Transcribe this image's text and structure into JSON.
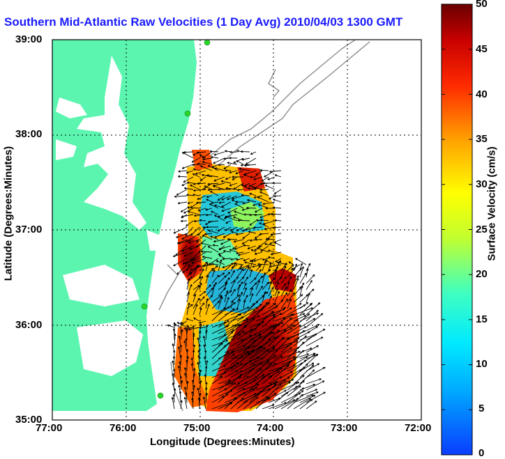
{
  "title": "Southern Mid-Atlantic Raw Velocities (1 Day Avg) 2010/04/03 1300 GMT",
  "axes": {
    "xlabel": "Longitude (Degrees:Minutes)",
    "ylabel": "Latitude (Degrees:Minutes)",
    "xticks": [
      "77:00",
      "76:00",
      "75:00",
      "74:00",
      "73:00",
      "72:00"
    ],
    "yticks": [
      "39:00",
      "38:00",
      "37:00",
      "36:00",
      "35:00"
    ]
  },
  "colorbar": {
    "label": "Surface Velocity (cm/s)",
    "ticks": [
      "50",
      "45",
      "40",
      "35",
      "30",
      "25",
      "20",
      "15",
      "10",
      "5",
      "0"
    ],
    "range": [
      0,
      50
    ],
    "colors": [
      "#0a3dff",
      "#00bfff",
      "#3dffd0",
      "#b6ff3d",
      "#ffff00",
      "#ffa500",
      "#ff3b00",
      "#c00000",
      "#6a0000"
    ]
  },
  "map": {
    "land_color": "#5cf5b0",
    "water_color": "#ffffff",
    "contour_color": "#8a8a8a",
    "grid": "dotted"
  },
  "chart_data": {
    "type": "heatmap",
    "title": "Southern Mid-Atlantic Raw Velocities (1 Day Avg) 2010/04/03 1300 GMT",
    "xlabel": "Longitude (Degrees:Minutes)",
    "ylabel": "Latitude (Degrees:Minutes)",
    "xlim": [
      "77:00",
      "72:00"
    ],
    "ylim": [
      "35:00",
      "39:00"
    ],
    "colorbar": {
      "label": "Surface Velocity (cm/s)",
      "range": [
        0,
        50
      ]
    },
    "grid": true
  }
}
